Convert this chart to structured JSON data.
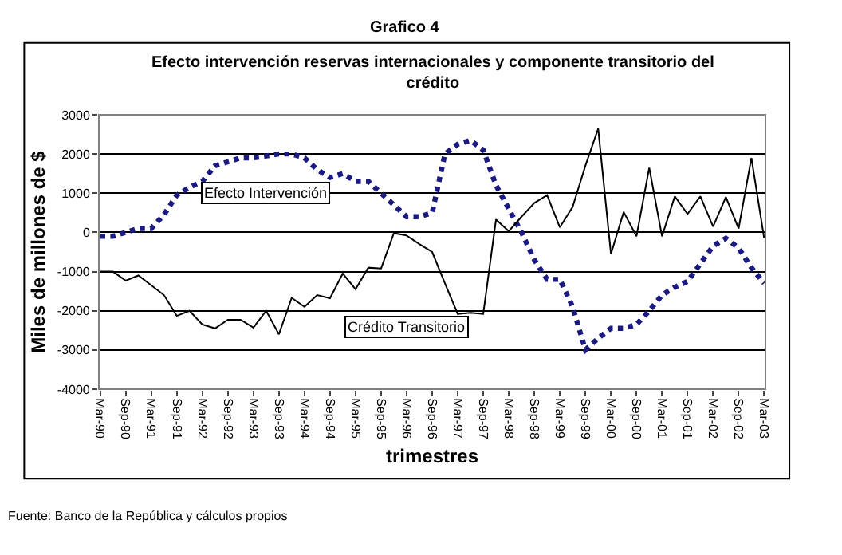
{
  "chart_data": {
    "type": "line",
    "title": "Grafico 4",
    "subtitle": "Efecto intervención reservas internacionales y componente transitorio del crédito",
    "xlabel": "trimestres",
    "ylabel": "Miles de millones de $",
    "categories": [
      "Mar-90",
      null,
      "Sep-90",
      null,
      "Mar-91",
      null,
      "Sep-91",
      null,
      "Mar-92",
      null,
      "Sep-92",
      null,
      "Mar-93",
      null,
      "Sep-93",
      null,
      "Mar-94",
      null,
      "Sep-94",
      null,
      "Mar-95",
      null,
      "Sep-95",
      null,
      "Mar-96",
      null,
      "Sep-96",
      null,
      "Mar-97",
      null,
      "Sep-97",
      null,
      "Mar-98",
      null,
      "Sep-98",
      null,
      "Mar-99",
      null,
      "Sep-99",
      null,
      "Mar-00",
      null,
      "Sep-00",
      null,
      "Mar-01",
      null,
      "Sep-01",
      null,
      "Mar-02",
      null,
      "Sep-02",
      null,
      "Mar-03"
    ],
    "series": [
      {
        "name": "Efecto Intervención",
        "color": "#1a1a80",
        "line_style": "dotted",
        "values": [
          -100,
          -100,
          0,
          100,
          100,
          450,
          950,
          1150,
          1300,
          1700,
          1800,
          1900,
          1900,
          1950,
          2000,
          2000,
          1900,
          1600,
          1400,
          1500,
          1300,
          1300,
          1000,
          700,
          400,
          400,
          500,
          2000,
          2250,
          2350,
          2100,
          1200,
          600,
          0,
          -700,
          -1200,
          -1200,
          -1900,
          -3000,
          -2700,
          -2450,
          -2450,
          -2350,
          -2000,
          -1600,
          -1400,
          -1250,
          -800,
          -350,
          -150,
          -400,
          -900,
          -1300
        ]
      },
      {
        "name": "Crédito Transitorio",
        "color": "#000000",
        "line_style": "solid",
        "values": [
          -1000,
          -1000,
          -1230,
          -1100,
          -1350,
          -1600,
          -2130,
          -2000,
          -2350,
          -2450,
          -2230,
          -2230,
          -2430,
          -2000,
          -2600,
          -1670,
          -1900,
          -1600,
          -1680,
          -1050,
          -1450,
          -900,
          -920,
          -20,
          -80,
          -300,
          -500,
          -1300,
          -2080,
          -2050,
          -2080,
          330,
          30,
          400,
          750,
          950,
          130,
          650,
          1700,
          2650,
          -550,
          520,
          -100,
          1650,
          -100,
          920,
          470,
          920,
          150,
          900,
          100,
          1900,
          -150
        ]
      }
    ],
    "ylim": [
      -4000,
      3000
    ],
    "yticks": [
      -4000,
      -3000,
      -2000,
      -1000,
      0,
      1000,
      2000,
      3000
    ],
    "grid": "y",
    "legend": false,
    "marker": "none",
    "annotations": [
      "Fuente: Banco de la República y cálculos propios"
    ]
  }
}
